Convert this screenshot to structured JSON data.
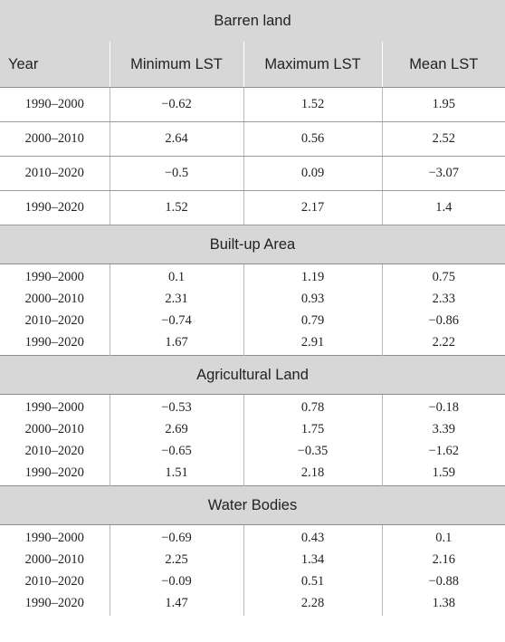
{
  "headers": [
    "Year",
    "Minimum LST",
    "Maximum LST",
    "Mean LST"
  ],
  "sections": [
    {
      "title": "Barren land",
      "rows": [
        [
          "1990–2000",
          "−0.62",
          "1.52",
          "1.95"
        ],
        [
          "2000–2010",
          "2.64",
          "0.56",
          "2.52"
        ],
        [
          "2010–2020",
          "−0.5",
          "0.09",
          "−3.07"
        ],
        [
          "1990–2020",
          "1.52",
          "2.17",
          "1.4"
        ]
      ]
    },
    {
      "title": "Built-up Area",
      "rows": [
        [
          "1990–2000",
          "0.1",
          "1.19",
          "0.75"
        ],
        [
          "2000–2010",
          "2.31",
          "0.93",
          "2.33"
        ],
        [
          "2010–2020",
          "−0.74",
          "0.79",
          "−0.86"
        ],
        [
          "1990–2020",
          "1.67",
          "2.91",
          "2.22"
        ]
      ]
    },
    {
      "title": "Agricultural Land",
      "rows": [
        [
          "1990–2000",
          "−0.53",
          "0.78",
          "−0.18"
        ],
        [
          "2000–2010",
          "2.69",
          "1.75",
          "3.39"
        ],
        [
          "2010–2020",
          "−0.65",
          "−0.35",
          "−1.62"
        ],
        [
          "1990–2020",
          "1.51",
          "2.18",
          "1.59"
        ]
      ]
    },
    {
      "title": "Water Bodies",
      "rows": [
        [
          "1990–2000",
          "−0.69",
          "0.43",
          "0.1"
        ],
        [
          "2000–2010",
          "2.25",
          "1.34",
          "2.16"
        ],
        [
          "2010–2020",
          "−0.09",
          "0.51",
          "−0.88"
        ],
        [
          "1990–2020",
          "1.47",
          "2.28",
          "1.38"
        ]
      ]
    }
  ]
}
